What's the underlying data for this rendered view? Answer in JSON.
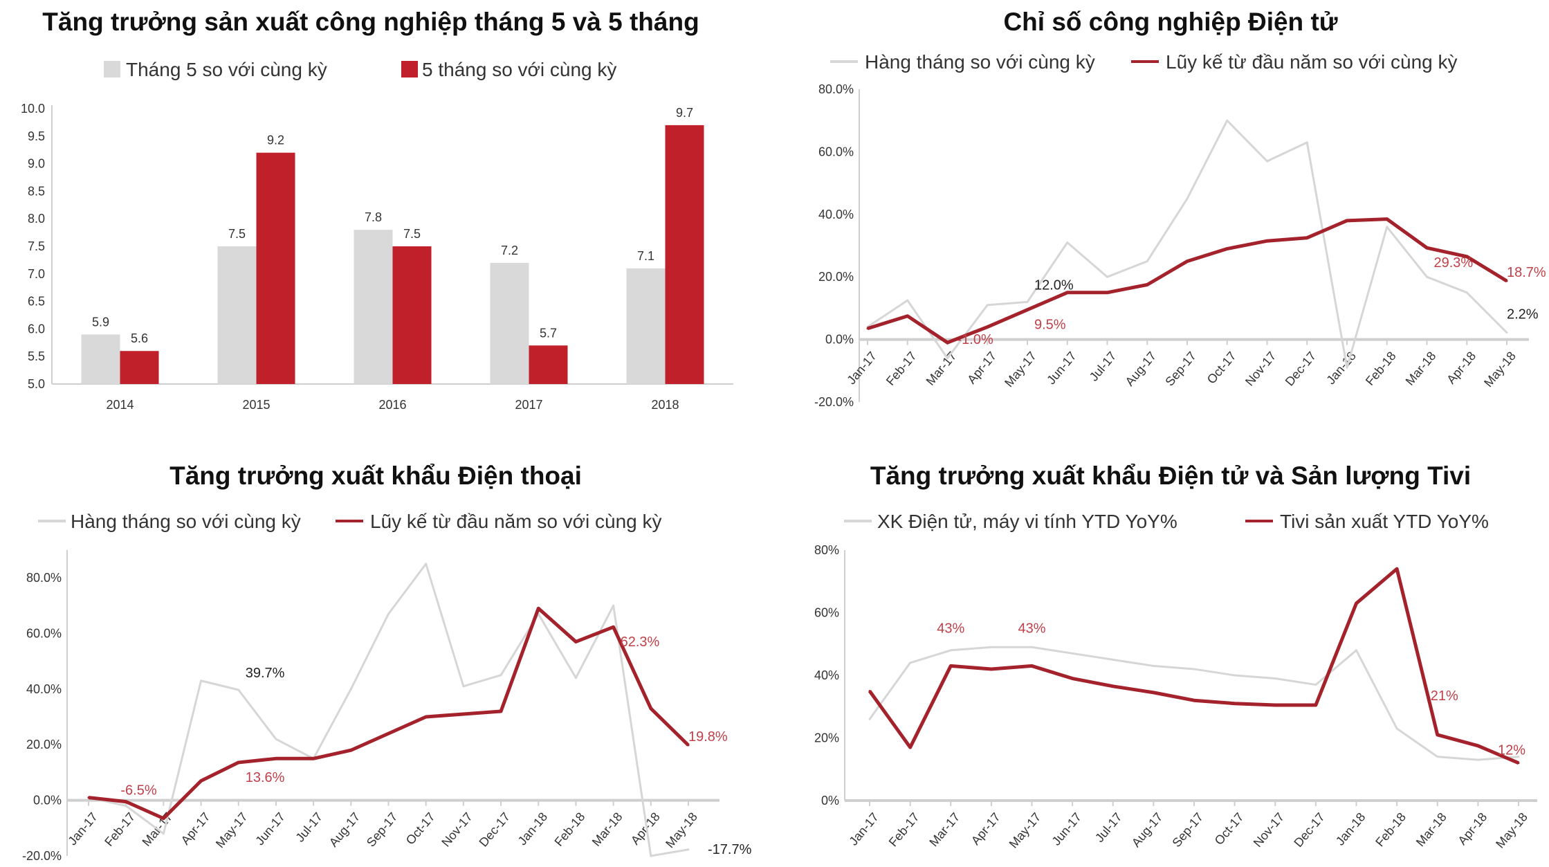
{
  "colors": {
    "gray": "#d6d6d6",
    "red": "#c0202a",
    "dark_red": "#a3222b",
    "label_red": "#c0404a",
    "axis": "#cfcfcf"
  },
  "chart_data": [
    {
      "type": "bar",
      "title": "Tăng trưởng sản xuất công nghiệp tháng 5 và 5 tháng",
      "categories": [
        "2014",
        "2015",
        "2016",
        "2017",
        "2018"
      ],
      "series": [
        {
          "name": "Tháng 5 so với cùng kỳ",
          "values": [
            5.9,
            7.5,
            7.8,
            7.2,
            7.1
          ],
          "color": "#d9d9d9"
        },
        {
          "name": "5 tháng so với cùng kỳ",
          "values": [
            5.6,
            9.2,
            7.5,
            5.7,
            9.7
          ],
          "color": "#c0202a"
        }
      ],
      "ylim": [
        5.0,
        10.0
      ],
      "yticks": [
        "5.0",
        "5.5",
        "6.0",
        "6.5",
        "7.0",
        "7.5",
        "8.0",
        "8.5",
        "9.0",
        "9.5",
        "10.0"
      ],
      "legend": "top",
      "grid": false
    },
    {
      "type": "line",
      "title": "Chỉ số công nghiệp Điện tử",
      "categories": [
        "Jan-17",
        "Feb-17",
        "Mar-17",
        "Apr-17",
        "May-17",
        "Jun-17",
        "Jul-17",
        "Aug-17",
        "Sep-17",
        "Oct-17",
        "Nov-17",
        "Dec-17",
        "Jan-18",
        "Feb-18",
        "Mar-18",
        "Apr-18",
        "May-18"
      ],
      "series": [
        {
          "name": "Hàng tháng so với cùng kỳ",
          "values": [
            4,
            12.5,
            -6,
            11,
            12.0,
            31,
            20,
            25,
            45,
            70,
            57,
            63,
            -9,
            36,
            20,
            15,
            2.2
          ],
          "color": "#d6d6d6"
        },
        {
          "name": "Lũy kế từ đầu năm so với cùng kỳ",
          "values": [
            3.5,
            7.5,
            -1.0,
            4,
            9.5,
            15,
            15,
            17.5,
            25,
            29,
            31.5,
            32.5,
            38,
            38.5,
            29.3,
            26.5,
            18.7
          ],
          "color": "#a3222b"
        }
      ],
      "annotations": [
        {
          "series": 0,
          "index": 4,
          "text": "12.0%"
        },
        {
          "series": 1,
          "index": 4,
          "text": "9.5%"
        },
        {
          "series": 1,
          "index": 2,
          "text": "-1.0%"
        },
        {
          "series": 1,
          "index": 14,
          "text": "29.3%"
        },
        {
          "series": 1,
          "index": 16,
          "text": "18.7%"
        },
        {
          "series": 0,
          "index": 16,
          "text": "2.2%"
        }
      ],
      "ylim": [
        -20,
        80
      ],
      "yticks": [
        "-20.0%",
        "0.0%",
        "20.0%",
        "40.0%",
        "60.0%",
        "80.0%"
      ],
      "legend": "top",
      "grid": false
    },
    {
      "type": "line",
      "title": "Tăng trưởng xuất khẩu Điện thoại",
      "categories": [
        "Jan-17",
        "Feb-17",
        "Mar-17",
        "Apr-17",
        "May-17",
        "Jun-17",
        "Jul-17",
        "Aug-17",
        "Sep-17",
        "Oct-17",
        "Nov-17",
        "Dec-17",
        "Jan-18",
        "Feb-18",
        "Mar-18",
        "Apr-18",
        "May-18"
      ],
      "series": [
        {
          "name": "Hàng tháng so với cùng kỳ",
          "values": [
            1,
            -2,
            -12,
            43,
            39.7,
            22,
            15,
            40,
            67,
            85,
            41,
            45,
            67,
            44,
            70,
            -20,
            -17.7
          ],
          "color": "#d6d6d6"
        },
        {
          "name": "Lũy kế từ đầu năm so với cùng kỳ",
          "values": [
            1,
            -0.5,
            -6.5,
            7,
            13.6,
            15,
            15,
            18,
            24,
            30,
            31,
            32,
            69,
            57,
            62.3,
            33,
            19.8
          ],
          "color": "#a3222b"
        }
      ],
      "annotations": [
        {
          "series": 1,
          "index": 2,
          "text": "-6.5%"
        },
        {
          "series": 0,
          "index": 4,
          "text": "39.7%"
        },
        {
          "series": 1,
          "index": 4,
          "text": "13.6%"
        },
        {
          "series": 1,
          "index": 14,
          "text": "62.3%"
        },
        {
          "series": 1,
          "index": 16,
          "text": "19.8%"
        },
        {
          "series": 0,
          "index": 16,
          "text": "-17.7%"
        }
      ],
      "ylim": [
        -20,
        90
      ],
      "yticks": [
        "-20.0%",
        "0.0%",
        "20.0%",
        "40.0%",
        "60.0%",
        "80.0%"
      ],
      "legend": "top",
      "grid": false
    },
    {
      "type": "line",
      "title": "Tăng trưởng xuất khẩu Điện tử và Sản lượng Tivi",
      "categories": [
        "Jan-17",
        "Feb-17",
        "Mar-17",
        "Apr-17",
        "May-17",
        "Jun-17",
        "Jul-17",
        "Aug-17",
        "Sep-17",
        "Oct-17",
        "Nov-17",
        "Dec-17",
        "Jan-18",
        "Feb-18",
        "Mar-18",
        "Apr-18",
        "May-18"
      ],
      "series": [
        {
          "name": "XK Điện tử, máy vi tính YTD YoY%",
          "values": [
            26,
            44,
            48,
            49,
            49,
            47,
            45,
            43,
            42,
            40,
            39,
            37,
            48,
            23,
            14,
            13,
            14
          ],
          "color": "#d6d6d6"
        },
        {
          "name": "Tivi sản xuất YTD YoY%",
          "values": [
            35,
            17,
            43,
            42,
            43,
            39,
            36.5,
            34.5,
            32,
            31,
            30.5,
            30.5,
            63,
            74,
            21,
            17.5,
            12
          ],
          "color": "#a3222b"
        }
      ],
      "annotations": [
        {
          "series": 1,
          "index": 2,
          "text": "43%"
        },
        {
          "series": 1,
          "index": 4,
          "text": "43%"
        },
        {
          "series": 1,
          "index": 14,
          "text": "21%"
        },
        {
          "series": 1,
          "index": 16,
          "text": "12%"
        }
      ],
      "ylim": [
        0,
        80
      ],
      "yticks": [
        "0%",
        "20%",
        "40%",
        "60%",
        "80%"
      ],
      "legend": "top",
      "grid": false
    }
  ]
}
